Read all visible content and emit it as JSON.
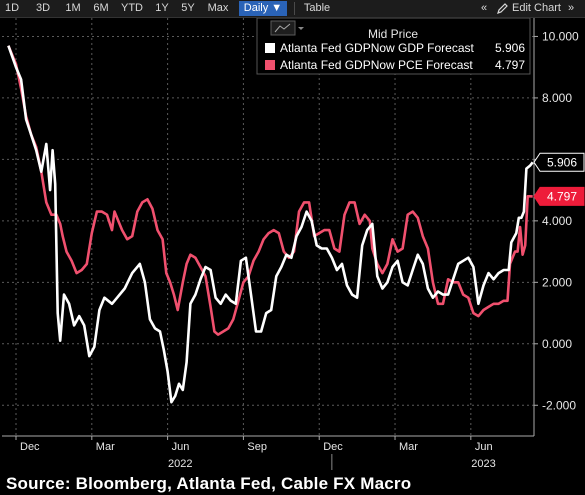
{
  "toolbar": {
    "ranges": [
      "1D",
      "3D",
      "1M",
      "6M",
      "YTD",
      "1Y",
      "5Y",
      "Max"
    ],
    "frequency": "Daily ▼",
    "table": "Table",
    "collapse": "«",
    "edit_chart": "Edit Chart",
    "expand": "»"
  },
  "legend": {
    "title": "Mid Price",
    "items": [
      {
        "label": "Atlanta Fed GDPNow GDP Forecast",
        "value": "5.906",
        "color": "#ffffff"
      },
      {
        "label": "Atlanta Fed GDPNow PCE Forecast",
        "value": "4.797",
        "color": "#f0506e"
      }
    ]
  },
  "footer": {
    "source": "Source: Bloomberg, Atlanta Fed, Cable FX Macro"
  },
  "chart_data": {
    "type": "line",
    "xlim": [
      0,
      20.5
    ],
    "ylim": [
      -3.0,
      10.6
    ],
    "y_ticks": [
      -2,
      0,
      2,
      4,
      6,
      8,
      10
    ],
    "y_tick_labels": [
      "-2.000",
      "0.000",
      "2.000",
      "4.000",
      "6.000",
      "8.000",
      "10.000"
    ],
    "x_ticks": [
      {
        "pos": 0,
        "label": "Dec"
      },
      {
        "pos": 3,
        "label": "Mar"
      },
      {
        "pos": 6,
        "label": "Jun"
      },
      {
        "pos": 9,
        "label": "Sep"
      },
      {
        "pos": 12,
        "label": "Dec"
      },
      {
        "pos": 15,
        "label": "Mar"
      },
      {
        "pos": 18,
        "label": "Jun"
      }
    ],
    "year_labels": [
      {
        "pos": 6.5,
        "label": "2022"
      },
      {
        "pos": 18.5,
        "label": "2023"
      }
    ],
    "series": [
      {
        "name": "Atlanta Fed GDPNow GDP Forecast",
        "color": "#ffffff",
        "last_label": "5.906",
        "points": [
          [
            -0.3,
            9.7
          ],
          [
            0.0,
            9.0
          ],
          [
            0.2,
            8.6
          ],
          [
            0.4,
            7.3
          ],
          [
            0.6,
            6.8
          ],
          [
            0.8,
            6.3
          ],
          [
            1.0,
            5.6
          ],
          [
            1.2,
            6.5
          ],
          [
            1.35,
            5.0
          ],
          [
            1.45,
            6.3
          ],
          [
            1.55,
            5.2
          ],
          [
            1.65,
            1.0
          ],
          [
            1.75,
            0.1
          ],
          [
            1.9,
            1.6
          ],
          [
            2.1,
            1.3
          ],
          [
            2.3,
            0.6
          ],
          [
            2.5,
            0.9
          ],
          [
            2.7,
            0.6
          ],
          [
            2.9,
            -0.4
          ],
          [
            3.1,
            -0.1
          ],
          [
            3.3,
            1.1
          ],
          [
            3.5,
            1.5
          ],
          [
            3.8,
            1.3
          ],
          [
            4.0,
            1.5
          ],
          [
            4.3,
            1.8
          ],
          [
            4.6,
            2.3
          ],
          [
            4.9,
            2.6
          ],
          [
            5.1,
            2.0
          ],
          [
            5.3,
            0.8
          ],
          [
            5.5,
            0.5
          ],
          [
            5.7,
            0.4
          ],
          [
            5.85,
            -0.2
          ],
          [
            6.0,
            -0.9
          ],
          [
            6.15,
            -1.9
          ],
          [
            6.3,
            -1.7
          ],
          [
            6.45,
            -1.3
          ],
          [
            6.6,
            -1.5
          ],
          [
            6.75,
            -0.6
          ],
          [
            6.9,
            1.3
          ],
          [
            7.1,
            1.6
          ],
          [
            7.3,
            2.1
          ],
          [
            7.5,
            2.5
          ],
          [
            7.7,
            2.4
          ],
          [
            7.9,
            1.5
          ],
          [
            8.1,
            1.3
          ],
          [
            8.3,
            1.6
          ],
          [
            8.5,
            1.4
          ],
          [
            8.7,
            1.3
          ],
          [
            8.9,
            2.7
          ],
          [
            9.1,
            2.8
          ],
          [
            9.3,
            1.6
          ],
          [
            9.5,
            0.4
          ],
          [
            9.7,
            0.4
          ],
          [
            9.9,
            1.0
          ],
          [
            10.1,
            1.1
          ],
          [
            10.3,
            2.2
          ],
          [
            10.5,
            2.5
          ],
          [
            10.7,
            2.9
          ],
          [
            10.9,
            2.8
          ],
          [
            11.1,
            3.5
          ],
          [
            11.3,
            3.8
          ],
          [
            11.5,
            4.3
          ],
          [
            11.7,
            4.0
          ],
          [
            11.9,
            3.2
          ],
          [
            12.1,
            3.1
          ],
          [
            12.3,
            3.1
          ],
          [
            12.5,
            2.8
          ],
          [
            12.7,
            2.4
          ],
          [
            12.9,
            2.6
          ],
          [
            13.1,
            1.9
          ],
          [
            13.3,
            1.6
          ],
          [
            13.5,
            1.5
          ],
          [
            13.7,
            3.2
          ],
          [
            13.9,
            3.7
          ],
          [
            14.1,
            3.9
          ],
          [
            14.3,
            2.2
          ],
          [
            14.5,
            1.8
          ],
          [
            14.7,
            2.0
          ],
          [
            14.9,
            2.5
          ],
          [
            15.1,
            2.7
          ],
          [
            15.3,
            2.0
          ],
          [
            15.5,
            1.9
          ],
          [
            15.7,
            2.4
          ],
          [
            15.9,
            2.9
          ],
          [
            16.1,
            2.6
          ],
          [
            16.3,
            1.8
          ],
          [
            16.5,
            1.5
          ],
          [
            16.7,
            1.7
          ],
          [
            16.9,
            1.6
          ],
          [
            17.1,
            1.6
          ],
          [
            17.3,
            2.1
          ],
          [
            17.5,
            2.6
          ],
          [
            17.7,
            2.7
          ],
          [
            17.9,
            2.8
          ],
          [
            18.1,
            2.5
          ],
          [
            18.3,
            1.3
          ],
          [
            18.5,
            1.9
          ],
          [
            18.7,
            2.3
          ],
          [
            18.9,
            2.1
          ],
          [
            19.1,
            2.3
          ],
          [
            19.3,
            2.4
          ],
          [
            19.5,
            2.4
          ],
          [
            19.6,
            3.3
          ],
          [
            19.8,
            3.6
          ],
          [
            19.9,
            4.1
          ],
          [
            20.0,
            4.1
          ],
          [
            20.1,
            4.3
          ],
          [
            20.2,
            5.7
          ],
          [
            20.35,
            5.8
          ],
          [
            20.45,
            5.906
          ]
        ]
      },
      {
        "name": "Atlanta Fed GDPNow PCE Forecast",
        "color": "#f0506e",
        "last_label": "4.797",
        "points": [
          [
            -0.3,
            9.7
          ],
          [
            0.0,
            9.1
          ],
          [
            0.2,
            8.3
          ],
          [
            0.4,
            7.4
          ],
          [
            0.6,
            6.8
          ],
          [
            0.8,
            6.4
          ],
          [
            1.0,
            5.6
          ],
          [
            1.2,
            4.6
          ],
          [
            1.4,
            4.2
          ],
          [
            1.6,
            4.2
          ],
          [
            1.75,
            3.9
          ],
          [
            1.85,
            3.5
          ],
          [
            2.0,
            3.0
          ],
          [
            2.2,
            2.7
          ],
          [
            2.4,
            2.3
          ],
          [
            2.6,
            2.4
          ],
          [
            2.8,
            2.6
          ],
          [
            3.0,
            3.6
          ],
          [
            3.2,
            4.3
          ],
          [
            3.4,
            4.3
          ],
          [
            3.6,
            4.2
          ],
          [
            3.8,
            3.7
          ],
          [
            3.9,
            4.3
          ],
          [
            4.2,
            3.7
          ],
          [
            4.4,
            3.4
          ],
          [
            4.6,
            3.5
          ],
          [
            4.8,
            4.3
          ],
          [
            5.0,
            4.6
          ],
          [
            5.2,
            4.7
          ],
          [
            5.4,
            4.4
          ],
          [
            5.6,
            3.7
          ],
          [
            5.8,
            3.4
          ],
          [
            5.95,
            2.3
          ],
          [
            6.1,
            2.0
          ],
          [
            6.25,
            1.6
          ],
          [
            6.4,
            1.1
          ],
          [
            6.6,
            2.0
          ],
          [
            6.75,
            2.6
          ],
          [
            6.9,
            2.9
          ],
          [
            7.1,
            2.8
          ],
          [
            7.3,
            2.5
          ],
          [
            7.5,
            2.2
          ],
          [
            7.7,
            1.2
          ],
          [
            7.85,
            0.4
          ],
          [
            8.0,
            0.3
          ],
          [
            8.2,
            0.4
          ],
          [
            8.4,
            0.5
          ],
          [
            8.6,
            0.8
          ],
          [
            8.8,
            1.4
          ],
          [
            9.0,
            2.0
          ],
          [
            9.2,
            2.2
          ],
          [
            9.4,
            2.7
          ],
          [
            9.6,
            3.0
          ],
          [
            9.8,
            3.4
          ],
          [
            10.0,
            3.6
          ],
          [
            10.2,
            3.7
          ],
          [
            10.4,
            3.6
          ],
          [
            10.6,
            3.0
          ],
          [
            10.8,
            2.8
          ],
          [
            11.0,
            3.0
          ],
          [
            11.2,
            4.3
          ],
          [
            11.4,
            4.6
          ],
          [
            11.6,
            4.6
          ],
          [
            11.8,
            3.5
          ],
          [
            12.0,
            3.6
          ],
          [
            12.2,
            3.7
          ],
          [
            12.4,
            3.7
          ],
          [
            12.6,
            3.1
          ],
          [
            12.8,
            3.0
          ],
          [
            13.0,
            4.2
          ],
          [
            13.2,
            4.6
          ],
          [
            13.4,
            4.6
          ],
          [
            13.6,
            3.9
          ],
          [
            13.8,
            4.2
          ],
          [
            14.0,
            4.0
          ],
          [
            14.1,
            3.1
          ],
          [
            14.3,
            2.6
          ],
          [
            14.5,
            2.3
          ],
          [
            14.7,
            2.6
          ],
          [
            14.9,
            3.4
          ],
          [
            15.1,
            3.0
          ],
          [
            15.3,
            3.1
          ],
          [
            15.5,
            4.2
          ],
          [
            15.7,
            4.3
          ],
          [
            15.9,
            4.1
          ],
          [
            16.1,
            3.5
          ],
          [
            16.3,
            3.1
          ],
          [
            16.5,
            2.0
          ],
          [
            16.7,
            1.3
          ],
          [
            16.9,
            1.3
          ],
          [
            17.1,
            2.1
          ],
          [
            17.3,
            2.0
          ],
          [
            17.5,
            2.0
          ],
          [
            17.7,
            1.6
          ],
          [
            17.9,
            1.5
          ],
          [
            18.1,
            1.0
          ],
          [
            18.3,
            0.9
          ],
          [
            18.5,
            1.1
          ],
          [
            18.7,
            1.2
          ],
          [
            18.9,
            1.3
          ],
          [
            19.1,
            1.3
          ],
          [
            19.3,
            1.4
          ],
          [
            19.45,
            1.4
          ],
          [
            19.55,
            2.6
          ],
          [
            19.75,
            3.0
          ],
          [
            19.85,
            3.0
          ],
          [
            19.95,
            3.8
          ],
          [
            20.05,
            2.9
          ],
          [
            20.15,
            3.2
          ],
          [
            20.25,
            4.8
          ],
          [
            20.35,
            4.8
          ],
          [
            20.45,
            4.797
          ]
        ]
      }
    ]
  }
}
